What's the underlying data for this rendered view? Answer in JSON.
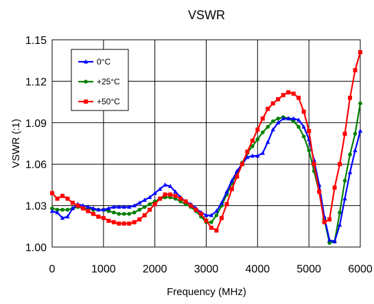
{
  "chart_data": {
    "type": "line",
    "title": "VSWR",
    "xlabel": "Frequency (MHz)",
    "ylabel": "VSWR (:1)",
    "xlim": [
      0,
      6000
    ],
    "ylim": [
      1.0,
      1.15
    ],
    "xticks": [
      "0",
      "1000",
      "2000",
      "3000",
      "4000",
      "5000",
      "6000"
    ],
    "yticks": [
      "1.00",
      "1.03",
      "1.06",
      "1.09",
      "1.12",
      "1.15"
    ],
    "grid": true,
    "legend_position": "top-left",
    "x": [
      0,
      100,
      200,
      300,
      400,
      500,
      600,
      700,
      800,
      900,
      1000,
      1100,
      1200,
      1300,
      1400,
      1500,
      1600,
      1700,
      1800,
      1900,
      2000,
      2100,
      2200,
      2300,
      2400,
      2500,
      2600,
      2700,
      2800,
      2900,
      3000,
      3100,
      3200,
      3300,
      3400,
      3500,
      3600,
      3700,
      3800,
      3900,
      4000,
      4100,
      4200,
      4300,
      4400,
      4500,
      4600,
      4700,
      4800,
      4900,
      5000,
      5100,
      5200,
      5300,
      5400,
      5500,
      5600,
      5700,
      5800,
      5900,
      6000
    ],
    "series": [
      {
        "name": "0°C",
        "color": "#0000ff",
        "marker": "triangle",
        "values": [
          1.026,
          1.025,
          1.021,
          1.022,
          1.028,
          1.031,
          1.03,
          1.029,
          1.028,
          1.027,
          1.027,
          1.028,
          1.029,
          1.029,
          1.029,
          1.029,
          1.03,
          1.032,
          1.034,
          1.036,
          1.039,
          1.042,
          1.045,
          1.044,
          1.04,
          1.036,
          1.033,
          1.031,
          1.028,
          1.025,
          1.023,
          1.023,
          1.026,
          1.032,
          1.04,
          1.048,
          1.055,
          1.06,
          1.065,
          1.066,
          1.066,
          1.068,
          1.076,
          1.085,
          1.09,
          1.093,
          1.093,
          1.093,
          1.092,
          1.087,
          1.078,
          1.063,
          1.045,
          1.022,
          1.005,
          1.004,
          1.016,
          1.035,
          1.054,
          1.07,
          1.084
        ]
      },
      {
        "name": "+25°C",
        "color": "#008000",
        "marker": "circle",
        "values": [
          1.028,
          1.027,
          1.027,
          1.027,
          1.028,
          1.029,
          1.028,
          1.028,
          1.027,
          1.027,
          1.027,
          1.026,
          1.025,
          1.024,
          1.024,
          1.024,
          1.025,
          1.027,
          1.029,
          1.031,
          1.033,
          1.035,
          1.036,
          1.036,
          1.035,
          1.033,
          1.031,
          1.029,
          1.026,
          1.022,
          1.018,
          1.018,
          1.023,
          1.03,
          1.038,
          1.046,
          1.054,
          1.061,
          1.068,
          1.073,
          1.078,
          1.083,
          1.087,
          1.091,
          1.093,
          1.094,
          1.093,
          1.091,
          1.087,
          1.08,
          1.07,
          1.055,
          1.04,
          1.02,
          1.003,
          1.004,
          1.025,
          1.048,
          1.067,
          1.082,
          1.104
        ]
      },
      {
        "name": "+50°C",
        "color": "#ff0000",
        "marker": "square",
        "values": [
          1.039,
          1.035,
          1.037,
          1.035,
          1.032,
          1.03,
          1.028,
          1.026,
          1.024,
          1.022,
          1.021,
          1.019,
          1.018,
          1.017,
          1.017,
          1.017,
          1.018,
          1.02,
          1.023,
          1.027,
          1.031,
          1.035,
          1.038,
          1.038,
          1.037,
          1.035,
          1.033,
          1.03,
          1.027,
          1.024,
          1.019,
          1.014,
          1.012,
          1.021,
          1.031,
          1.042,
          1.051,
          1.06,
          1.069,
          1.077,
          1.085,
          1.093,
          1.1,
          1.104,
          1.107,
          1.11,
          1.112,
          1.111,
          1.108,
          1.098,
          1.084,
          1.06,
          1.04,
          1.018,
          1.02,
          1.043,
          1.06,
          1.082,
          1.108,
          1.128,
          1.141
        ]
      }
    ]
  }
}
